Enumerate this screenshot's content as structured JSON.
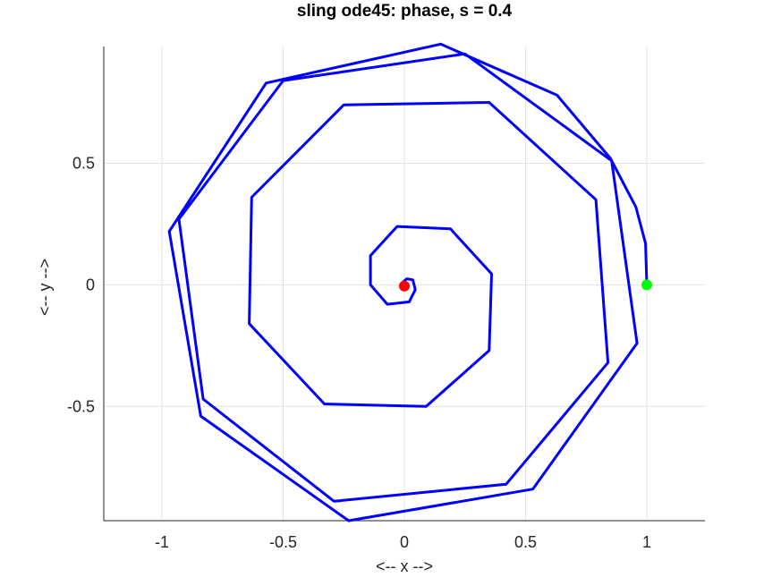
{
  "chart_data": {
    "type": "line",
    "title": "sling ode45: phase, s = 0.4",
    "xlabel": "<-- x -->",
    "ylabel": "<-- y -->",
    "xlim": [
      -1.24,
      1.24
    ],
    "ylim": [
      -0.97,
      0.98
    ],
    "xticks": [
      -1,
      -0.5,
      0,
      0.5,
      1
    ],
    "xtick_labels": [
      "-1",
      "-0.5",
      "0",
      "0.5",
      "1"
    ],
    "yticks": [
      -0.5,
      0,
      0.5
    ],
    "ytick_labels": [
      "-0.5",
      "0",
      "0.5"
    ],
    "grid": true,
    "series": [
      {
        "color": "#0000ff",
        "points": [
          [
            1.0,
            0.0
          ],
          [
            0.995,
            0.17
          ],
          [
            0.955,
            0.32
          ],
          [
            0.85,
            0.52
          ],
          [
            0.63,
            0.78
          ],
          [
            0.15,
            0.99
          ],
          [
            -0.57,
            0.83
          ],
          [
            -0.97,
            0.22
          ],
          [
            -0.84,
            -0.54
          ],
          [
            -0.23,
            -0.97
          ],
          [
            0.53,
            -0.84
          ],
          [
            0.96,
            -0.24
          ],
          [
            0.855,
            0.51
          ],
          [
            0.25,
            0.95
          ],
          [
            -0.5,
            0.84
          ],
          [
            -0.93,
            0.27
          ],
          [
            -0.83,
            -0.47
          ],
          [
            -0.29,
            -0.89
          ],
          [
            0.42,
            -0.82
          ],
          [
            0.84,
            -0.32
          ],
          [
            0.79,
            0.35
          ],
          [
            0.35,
            0.75
          ],
          [
            -0.25,
            0.74
          ],
          [
            -0.63,
            0.36
          ],
          [
            -0.64,
            -0.16
          ],
          [
            -0.33,
            -0.49
          ],
          [
            0.09,
            -0.5
          ],
          [
            0.35,
            -0.27
          ],
          [
            0.36,
            0.045
          ],
          [
            0.19,
            0.23
          ],
          [
            -0.03,
            0.24
          ],
          [
            -0.14,
            0.12
          ],
          [
            -0.14,
            0.0
          ],
          [
            -0.07,
            -0.08
          ],
          [
            0.02,
            -0.07
          ],
          [
            0.045,
            -0.02
          ],
          [
            0.035,
            0.02
          ],
          [
            0.01,
            0.025
          ],
          [
            -0.005,
            0.012
          ],
          [
            0.0,
            -0.005
          ]
        ]
      }
    ],
    "markers": [
      {
        "name": "start",
        "x": 1.0,
        "y": 0.0,
        "color": "#00ff00"
      },
      {
        "name": "end",
        "x": 0.0,
        "y": -0.005,
        "color": "#ff0000"
      }
    ]
  }
}
